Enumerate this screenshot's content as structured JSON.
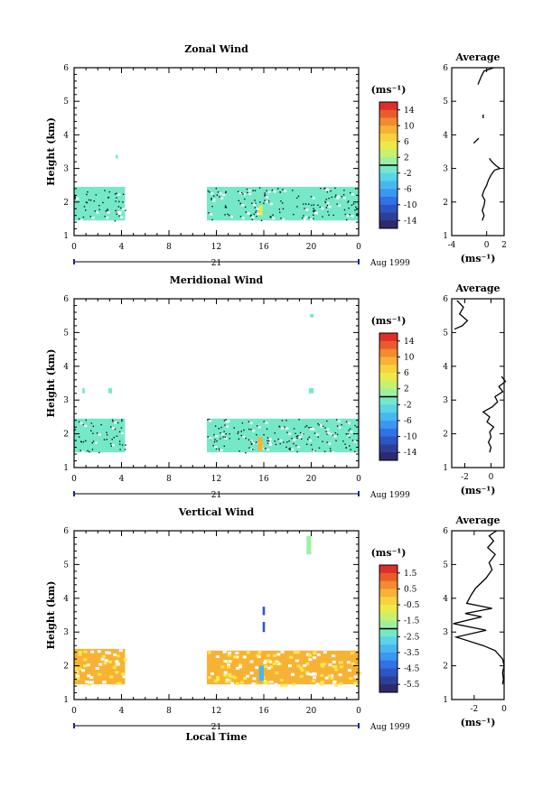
{
  "colorbar_colors": [
    "#2d2a6e",
    "#2c3f99",
    "#2d56c4",
    "#2f73e6",
    "#3a97f2",
    "#47b8ef",
    "#5ad4e6",
    "#74e8c7",
    "#9ef0a0",
    "#c9f06c",
    "#eee94a",
    "#f7d23c",
    "#f7b235",
    "#f28a30",
    "#ea5b2c",
    "#df2e2a"
  ],
  "panels": [
    {
      "title": "Zonal Wind",
      "ylabel": "Height (km)",
      "date_label": "Aug 1999",
      "xticks": [
        "0",
        "4",
        "8",
        "12",
        "16",
        "20",
        "0"
      ],
      "day_label": "21",
      "unit_label": "(ms⁻¹)",
      "cbar_ticks": [
        "14",
        "10",
        "6",
        "2",
        "-2",
        "-6",
        "-10",
        "-14"
      ],
      "avg_title": "Average",
      "avg_xticks": [
        "-4",
        "0",
        "2"
      ],
      "avg_xlabel": "(ms⁻¹)",
      "yticks": [
        "1",
        "2",
        "3",
        "4",
        "5",
        "6"
      ]
    },
    {
      "title": "Meridional Wind",
      "ylabel": "Height (km)",
      "date_label": "Aug 1999",
      "xticks": [
        "0",
        "4",
        "8",
        "12",
        "16",
        "20",
        "0"
      ],
      "day_label": "21",
      "unit_label": "(ms⁻¹)",
      "cbar_ticks": [
        "14",
        "10",
        "6",
        "2",
        "-2",
        "-6",
        "-10",
        "-14"
      ],
      "avg_title": "Average",
      "avg_xticks": [
        "-2",
        "0"
      ],
      "avg_xlabel": "(ms⁻¹)",
      "yticks": [
        "1",
        "2",
        "3",
        "4",
        "5",
        "6"
      ]
    },
    {
      "title": "Vertical Wind",
      "ylabel": "Height (km)",
      "date_label": "Aug 1999",
      "xticks": [
        "0",
        "4",
        "8",
        "12",
        "16",
        "20",
        "0"
      ],
      "day_label": "21",
      "unit_label": "(ms⁻¹)",
      "cbar_ticks": [
        "1.5",
        "0.5",
        "-0.5",
        "-1.5",
        "-2.5",
        "-3.5",
        "-4.5",
        "-5.5"
      ],
      "avg_title": "Average",
      "avg_xticks": [
        "-2",
        "0"
      ],
      "avg_xlabel": "(ms⁻¹)",
      "yticks": [
        "1",
        "2",
        "3",
        "4",
        "5",
        "6"
      ],
      "xlabel": "Local Time"
    }
  ],
  "chart_data": [
    {
      "type": "heatmap",
      "title": "Zonal Wind",
      "ylabel": "Height (km)",
      "xlim": [
        0,
        24
      ],
      "ylim": [
        1,
        6
      ],
      "colorbar_range": [
        -16,
        16
      ],
      "blocks": [
        {
          "x": [
            0,
            4.3
          ],
          "y": [
            1.45,
            2.45
          ],
          "value": -1.5
        },
        {
          "x": [
            11.2,
            24
          ],
          "y": [
            1.45,
            2.45
          ],
          "value": -1.5
        },
        {
          "x": [
            3.5,
            3.7
          ],
          "y": [
            3.3,
            3.4
          ],
          "value": -1.0
        },
        {
          "x": [
            15.6,
            15.9
          ],
          "y": [
            1.6,
            1.9
          ],
          "value": 5.0
        }
      ],
      "profile": {
        "xlim": [
          -4,
          2
        ],
        "segments": [
          [
            [
              -0.5,
              1.45
            ],
            [
              -0.3,
              1.6
            ],
            [
              -0.5,
              1.75
            ],
            [
              -0.3,
              1.9
            ],
            [
              -0.2,
              2.05
            ],
            [
              -0.5,
              2.2
            ],
            [
              -0.3,
              2.35
            ],
            [
              0.0,
              2.5
            ],
            [
              0.2,
              2.65
            ],
            [
              0.5,
              2.8
            ],
            [
              0.9,
              2.95
            ],
            [
              1.5,
              3.0
            ],
            [
              1.0,
              3.1
            ],
            [
              0.6,
              3.2
            ],
            [
              0.3,
              3.3
            ]
          ],
          [
            [
              -1.5,
              3.75
            ],
            [
              -0.9,
              3.9
            ]
          ],
          [
            [
              -1.0,
              5.5
            ],
            [
              -0.6,
              5.75
            ],
            [
              -0.3,
              5.9
            ],
            [
              0.8,
              6.0
            ]
          ]
        ],
        "points": [
          [
            -0.4,
            4.55
          ]
        ]
      }
    },
    {
      "type": "heatmap",
      "title": "Meridional Wind",
      "ylabel": "Height (km)",
      "xlim": [
        0,
        24
      ],
      "ylim": [
        1,
        6
      ],
      "colorbar_range": [
        -16,
        16
      ],
      "blocks": [
        {
          "x": [
            0,
            4.3
          ],
          "y": [
            1.45,
            2.45
          ],
          "value": -1.5
        },
        {
          "x": [
            11.2,
            24
          ],
          "y": [
            1.45,
            2.45
          ],
          "value": -1.5
        },
        {
          "x": [
            0.7,
            0.9
          ],
          "y": [
            3.2,
            3.35
          ],
          "value": -1.0
        },
        {
          "x": [
            2.9,
            3.2
          ],
          "y": [
            3.2,
            3.35
          ],
          "value": -1.0
        },
        {
          "x": [
            19.8,
            20.2
          ],
          "y": [
            3.2,
            3.35
          ],
          "value": -1.0
        },
        {
          "x": [
            19.9,
            20.2
          ],
          "y": [
            5.45,
            5.55
          ],
          "value": -1.0
        },
        {
          "x": [
            15.5,
            15.9
          ],
          "y": [
            1.5,
            1.9
          ],
          "value": 9.0
        }
      ],
      "profile": {
        "xlim": [
          -3,
          1
        ],
        "segments": [
          [
            [
              -0.1,
              1.45
            ],
            [
              0.0,
              1.6
            ],
            [
              -0.2,
              1.75
            ],
            [
              0.0,
              1.9
            ],
            [
              -0.1,
              2.05
            ],
            [
              0.2,
              2.2
            ],
            [
              -0.3,
              2.35
            ],
            [
              -0.1,
              2.5
            ],
            [
              -0.6,
              2.65
            ],
            [
              0.1,
              2.8
            ],
            [
              0.5,
              2.95
            ],
            [
              0.3,
              3.1
            ],
            [
              0.9,
              3.25
            ],
            [
              0.6,
              3.4
            ],
            [
              1.1,
              3.55
            ],
            [
              0.8,
              3.7
            ]
          ],
          [
            [
              -2.8,
              5.1
            ],
            [
              -2.2,
              5.2
            ],
            [
              -1.8,
              5.35
            ],
            [
              -2.4,
              5.55
            ],
            [
              -2.1,
              5.75
            ],
            [
              -2.6,
              5.95
            ]
          ]
        ]
      }
    },
    {
      "type": "heatmap",
      "title": "Vertical Wind",
      "ylabel": "Height (km)",
      "xlabel": "Local Time",
      "xlim": [
        0,
        24
      ],
      "ylim": [
        1,
        6
      ],
      "colorbar_range": [
        -6,
        2
      ],
      "blocks": [
        {
          "x": [
            0,
            4.3
          ],
          "y": [
            1.45,
            2.5
          ],
          "value": 0.2
        },
        {
          "x": [
            11.2,
            24
          ],
          "y": [
            1.45,
            2.45
          ],
          "value": 0.2
        },
        {
          "x": [
            15.6,
            16.0
          ],
          "y": [
            1.55,
            2.0
          ],
          "value": -3.5
        },
        {
          "x": [
            15.9,
            16.1
          ],
          "y": [
            3.0,
            3.3
          ],
          "value": -5.0
        },
        {
          "x": [
            15.9,
            16.1
          ],
          "y": [
            3.5,
            3.75
          ],
          "value": -5.0
        },
        {
          "x": [
            19.6,
            20.0
          ],
          "y": [
            5.3,
            5.85
          ],
          "value": -2.0
        }
      ],
      "profile": {
        "xlim": [
          -3.5,
          0
        ],
        "segments": [
          [
            [
              -0.1,
              1.45
            ],
            [
              -0.05,
              1.6
            ],
            [
              -0.1,
              1.8
            ],
            [
              0.0,
              2.0
            ],
            [
              -0.1,
              2.2
            ],
            [
              -0.6,
              2.45
            ],
            [
              -1.4,
              2.6
            ],
            [
              -3.2,
              2.85
            ],
            [
              -1.2,
              3.05
            ],
            [
              -3.4,
              3.25
            ],
            [
              -1.5,
              3.45
            ],
            [
              -2.6,
              3.55
            ],
            [
              -0.8,
              3.7
            ],
            [
              -2.5,
              3.85
            ],
            [
              -2.2,
              4.1
            ],
            [
              -1.9,
              4.3
            ],
            [
              -1.2,
              4.6
            ],
            [
              -0.8,
              4.85
            ],
            [
              -1.0,
              5.05
            ],
            [
              -0.6,
              5.3
            ],
            [
              -1.1,
              5.5
            ],
            [
              -0.7,
              5.7
            ],
            [
              -1.0,
              5.85
            ],
            [
              -0.5,
              6.0
            ]
          ]
        ]
      }
    }
  ]
}
